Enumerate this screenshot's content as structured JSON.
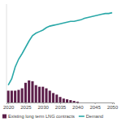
{
  "chart_data": {
    "type": "bar",
    "x": [
      2020,
      2021,
      2022,
      2023,
      2024,
      2025,
      2026,
      2027,
      2028,
      2029,
      2030,
      2031,
      2032,
      2033,
      2034,
      2035,
      2036,
      2037,
      2038,
      2039,
      2040,
      2041,
      2042,
      2043,
      2044,
      2045,
      2046,
      2047,
      2048,
      2049,
      2050
    ],
    "series": [
      {
        "name": "Existing long term LNG contracts",
        "type": "bar",
        "color": "#5c1f4a",
        "values": [
          15,
          15,
          15,
          16,
          18,
          25,
          28,
          27,
          22,
          20,
          20,
          18,
          15,
          12,
          10,
          7,
          5,
          4,
          3,
          2,
          1,
          null,
          null,
          null,
          null,
          null,
          null,
          null,
          null,
          null,
          null
        ]
      },
      {
        "name": "Demand",
        "type": "line",
        "color": "#2aa8a8",
        "values": [
          22,
          30,
          45,
          55,
          62,
          70,
          78,
          85,
          88,
          90,
          92,
          95,
          97,
          98,
          99,
          100,
          101,
          102,
          103,
          103,
          104,
          105,
          107,
          108,
          109,
          110,
          111,
          112,
          113,
          113,
          114
        ]
      }
    ],
    "xlim": [
      2019.5,
      2050.5
    ],
    "xticks": [
      2020,
      2025,
      2030,
      2035,
      2040,
      2045,
      2050
    ],
    "ylim": [
      0,
      125
    ],
    "tick_labels": "x",
    "grid": false,
    "legend": "bottom"
  }
}
